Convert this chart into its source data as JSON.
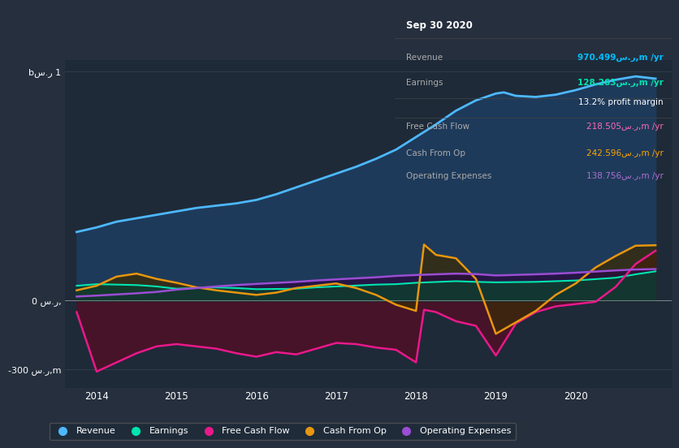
{
  "bg_color": "#252f3e",
  "plot_bg_color": "#1e2a38",
  "xmin": 2013.6,
  "xmax": 2021.2,
  "ymin": -380000000,
  "ymax": 1050000000,
  "yticks_vals": [
    1000000000,
    0,
    -300000000
  ],
  "ytick_labels": [
    "bس.ر 1",
    "0 س.ر,",
    "-300 س.ر,m"
  ],
  "xticks_vals": [
    2014,
    2015,
    2016,
    2017,
    2018,
    2019,
    2020
  ],
  "xtick_labels": [
    "2014",
    "2015",
    "2016",
    "2017",
    "2018",
    "2019",
    "2020"
  ],
  "info_box": {
    "title": "Sep 30 2020",
    "bg_color": "#0a0a0a",
    "border_color": "#555555",
    "rows": [
      {
        "label": "Revenue",
        "value": "970.499س.ر,m /yr",
        "value_color": "#00bfff",
        "bold": true
      },
      {
        "label": "Earnings",
        "value": "128.263س.ر,m /yr",
        "value_color": "#00e5b0",
        "bold": true
      },
      {
        "label": "",
        "value": "13.2% profit margin",
        "value_color": "#ffffff",
        "bold": false
      },
      {
        "label": "Free Cash Flow",
        "value": "218.505س.ر,m /yr",
        "value_color": "#ff69b4",
        "bold": false
      },
      {
        "label": "Cash From Op",
        "value": "242.596س.ر,m /yr",
        "value_color": "#ffa500",
        "bold": false
      },
      {
        "label": "Operating Expenses",
        "value": "138.756س.ر,m /yr",
        "value_color": "#b06fd0",
        "bold": false
      }
    ]
  },
  "series": {
    "revenue": {
      "line_color": "#4db8ff",
      "fill_color": "#1e3a5a",
      "lw": 2.0,
      "x": [
        2013.75,
        2014.0,
        2014.25,
        2014.5,
        2014.75,
        2015.0,
        2015.25,
        2015.5,
        2015.75,
        2016.0,
        2016.25,
        2016.5,
        2016.75,
        2017.0,
        2017.25,
        2017.5,
        2017.75,
        2018.0,
        2018.25,
        2018.5,
        2018.75,
        2019.0,
        2019.1,
        2019.25,
        2019.5,
        2019.75,
        2020.0,
        2020.25,
        2020.5,
        2020.75,
        2021.0
      ],
      "y": [
        300000000,
        320000000,
        345000000,
        360000000,
        375000000,
        390000000,
        405000000,
        415000000,
        425000000,
        440000000,
        465000000,
        495000000,
        525000000,
        555000000,
        585000000,
        620000000,
        660000000,
        715000000,
        770000000,
        830000000,
        875000000,
        905000000,
        910000000,
        895000000,
        890000000,
        900000000,
        920000000,
        945000000,
        965000000,
        980000000,
        970000000
      ]
    },
    "earnings": {
      "line_color": "#00e5b0",
      "fill_color": "#0f3d30",
      "lw": 1.5,
      "x": [
        2013.75,
        2014.0,
        2014.5,
        2014.75,
        2015.0,
        2015.5,
        2015.75,
        2016.0,
        2016.5,
        2016.75,
        2017.0,
        2017.5,
        2017.75,
        2018.0,
        2018.5,
        2018.75,
        2019.0,
        2019.5,
        2019.75,
        2020.0,
        2020.5,
        2020.75,
        2021.0
      ],
      "y": [
        65000000,
        72000000,
        68000000,
        62000000,
        52000000,
        58000000,
        55000000,
        50000000,
        52000000,
        58000000,
        62000000,
        70000000,
        72000000,
        78000000,
        85000000,
        82000000,
        80000000,
        82000000,
        85000000,
        88000000,
        100000000,
        115000000,
        128000000
      ]
    },
    "free_cash_flow": {
      "line_color": "#e8198b",
      "fill_neg_color": "#4a1228",
      "fill_pos_color": "#4a1228",
      "lw": 1.8,
      "x": [
        2013.75,
        2014.0,
        2014.25,
        2014.5,
        2014.75,
        2015.0,
        2015.25,
        2015.5,
        2015.75,
        2016.0,
        2016.25,
        2016.5,
        2016.75,
        2017.0,
        2017.25,
        2017.5,
        2017.75,
        2018.0,
        2018.1,
        2018.25,
        2018.5,
        2018.75,
        2019.0,
        2019.25,
        2019.5,
        2019.75,
        2020.0,
        2020.25,
        2020.5,
        2020.75,
        2021.0
      ],
      "y": [
        -50000000,
        -310000000,
        -270000000,
        -230000000,
        -200000000,
        -190000000,
        -200000000,
        -210000000,
        -230000000,
        -245000000,
        -225000000,
        -235000000,
        -210000000,
        -185000000,
        -190000000,
        -205000000,
        -215000000,
        -270000000,
        -40000000,
        -50000000,
        -90000000,
        -110000000,
        -240000000,
        -100000000,
        -50000000,
        -25000000,
        -15000000,
        -5000000,
        60000000,
        160000000,
        218000000
      ]
    },
    "cash_from_op": {
      "line_color": "#e8960f",
      "fill_color": "#3a2a08",
      "lw": 1.8,
      "x": [
        2013.75,
        2014.0,
        2014.25,
        2014.5,
        2014.75,
        2015.0,
        2015.25,
        2015.5,
        2015.75,
        2016.0,
        2016.25,
        2016.5,
        2016.75,
        2017.0,
        2017.25,
        2017.5,
        2017.75,
        2018.0,
        2018.1,
        2018.25,
        2018.5,
        2018.75,
        2019.0,
        2019.25,
        2019.5,
        2019.75,
        2020.0,
        2020.25,
        2020.5,
        2020.75,
        2021.0
      ],
      "y": [
        45000000,
        65000000,
        105000000,
        118000000,
        95000000,
        78000000,
        58000000,
        45000000,
        35000000,
        25000000,
        35000000,
        55000000,
        65000000,
        75000000,
        55000000,
        25000000,
        -18000000,
        -45000000,
        245000000,
        200000000,
        185000000,
        95000000,
        -145000000,
        -95000000,
        -45000000,
        25000000,
        75000000,
        145000000,
        195000000,
        240000000,
        242000000
      ]
    },
    "operating_expenses": {
      "line_color": "#9b4dd4",
      "fill_color": "#280a40",
      "lw": 1.8,
      "x": [
        2013.75,
        2014.0,
        2014.5,
        2014.75,
        2015.0,
        2015.5,
        2015.75,
        2016.0,
        2016.5,
        2016.75,
        2017.0,
        2017.5,
        2017.75,
        2018.0,
        2018.5,
        2018.75,
        2019.0,
        2019.5,
        2019.75,
        2020.0,
        2020.5,
        2020.75,
        2021.0
      ],
      "y": [
        18000000,
        22000000,
        32000000,
        38000000,
        48000000,
        62000000,
        68000000,
        73000000,
        82000000,
        88000000,
        93000000,
        102000000,
        108000000,
        112000000,
        118000000,
        116000000,
        110000000,
        115000000,
        118000000,
        122000000,
        132000000,
        136000000,
        138000000
      ]
    }
  },
  "legend": [
    {
      "label": "Revenue",
      "color": "#4db8ff"
    },
    {
      "label": "Earnings",
      "color": "#00e5b0"
    },
    {
      "label": "Free Cash Flow",
      "color": "#e8198b"
    },
    {
      "label": "Cash From Op",
      "color": "#e8960f"
    },
    {
      "label": "Operating Expenses",
      "color": "#9b4dd4"
    }
  ]
}
